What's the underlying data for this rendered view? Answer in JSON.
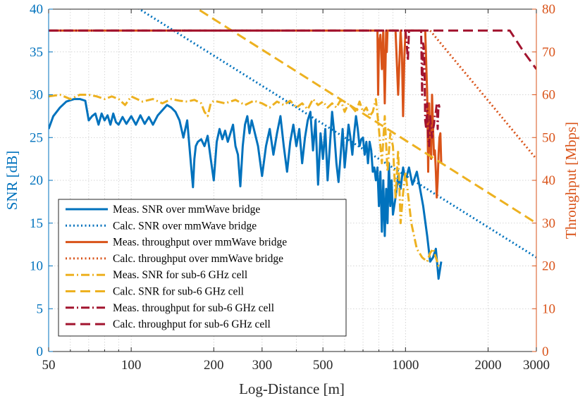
{
  "chart_data": {
    "type": "line",
    "xlabel": "Log-Distance [m]",
    "ylabel_left": "SNR [dB]",
    "ylabel_right": "Throughput [Mbps]",
    "xscale": "log",
    "xlim": [
      50,
      3000
    ],
    "ylim_left": [
      0,
      40
    ],
    "ylim_right": [
      0,
      80
    ],
    "xticks": [
      50,
      100,
      200,
      300,
      500,
      1000,
      2000,
      3000
    ],
    "xtick_labels": [
      "50",
      "100",
      "200",
      "300",
      "500",
      "1000",
      "2000",
      "3000"
    ],
    "yticks_left": [
      0,
      5,
      10,
      15,
      20,
      25,
      30,
      35,
      40
    ],
    "yticks_right": [
      0,
      10,
      20,
      30,
      40,
      50,
      60,
      70,
      80
    ],
    "minor_x_grid": [
      60,
      70,
      80,
      90,
      400,
      600,
      700,
      800,
      900
    ],
    "legend_position": "lower-left",
    "colors": {
      "snr": "#0072BD",
      "thr": "#D95319",
      "sub6_snr": "#EDB120",
      "sub6_thr": "#A2142F",
      "grid": "#c8c8c8"
    },
    "series": [
      {
        "name": "Meas. SNR over mmWave bridge",
        "axis": "left",
        "color": "#0072BD",
        "style": "solid",
        "x": [
          50,
          52,
          55,
          58,
          62,
          65,
          68,
          70,
          72,
          74,
          76,
          78,
          80,
          82,
          84,
          86,
          88,
          90,
          93,
          96,
          100,
          104,
          108,
          112,
          116,
          120,
          125,
          130,
          135,
          140,
          145,
          150,
          155,
          160,
          165,
          168,
          170,
          172,
          175,
          180,
          185,
          190,
          195,
          200,
          205,
          210,
          215,
          220,
          225,
          230,
          235,
          240,
          245,
          250,
          255,
          260,
          265,
          270,
          275,
          280,
          290,
          300,
          310,
          320,
          330,
          340,
          350,
          360,
          370,
          380,
          390,
          400,
          410,
          420,
          430,
          440,
          450,
          460,
          470,
          480,
          490,
          500,
          510,
          520,
          530,
          540,
          550,
          560,
          570,
          580,
          590,
          600,
          610,
          620,
          630,
          640,
          650,
          660,
          670,
          680,
          690,
          700,
          710,
          720,
          730,
          740,
          750,
          760,
          770,
          780,
          790,
          800,
          810,
          820,
          830,
          840,
          850,
          860,
          870,
          880,
          890,
          900,
          920,
          940,
          960,
          980,
          1000,
          1030,
          1060,
          1100,
          1130,
          1160,
          1200,
          1230,
          1260,
          1290,
          1320,
          1350
        ],
        "y": [
          26,
          27.5,
          28.5,
          29.2,
          29.5,
          29.5,
          29.3,
          27.0,
          27.5,
          27.8,
          26.5,
          27.8,
          27.0,
          27.6,
          26.5,
          27.8,
          26.8,
          26.5,
          27.4,
          26.6,
          27.5,
          26.5,
          27.6,
          26.6,
          27.4,
          26.5,
          27.6,
          28.2,
          28.8,
          28.5,
          28.0,
          27.0,
          25.0,
          27.0,
          22.0,
          19.2,
          22.5,
          24.0,
          24.5,
          24.8,
          24.0,
          25.2,
          22.5,
          20.0,
          24.5,
          26.0,
          24.8,
          25.8,
          24.5,
          25.5,
          26.5,
          24.0,
          23.0,
          19.3,
          24.0,
          26.5,
          27.5,
          25.5,
          27.0,
          26.0,
          24.0,
          20.5,
          24.0,
          26.0,
          23.0,
          25.5,
          27.5,
          24.0,
          21.0,
          24.5,
          26.5,
          24.0,
          26.0,
          22.0,
          25.0,
          27.0,
          28.0,
          23.5,
          27.0,
          19.5,
          25.5,
          22.5,
          26.0,
          20.0,
          24.0,
          28.0,
          25.5,
          22.0,
          19.8,
          23.0,
          26.0,
          21.5,
          24.0,
          26.5,
          25.0,
          23.0,
          25.5,
          27.5,
          26.0,
          24.0,
          24.8,
          25.0,
          23.0,
          24.5,
          22.0,
          24.5,
          23.5,
          21.0,
          21.5,
          20.0,
          21.5,
          17.0,
          21.0,
          14.0,
          20.0,
          13.5,
          19.0,
          15.0,
          22.0,
          17.0,
          20.0,
          16.0,
          18.0,
          20.5,
          19.0,
          21.5,
          20.0,
          21.5,
          19.5,
          21.0,
          19.0,
          17.0,
          13.5,
          10.5,
          11.0,
          12.0,
          8.5,
          10.5
        ]
      },
      {
        "name": "Calc. SNR over mmWave bridge",
        "axis": "left",
        "color": "#0072BD",
        "style": "dotted",
        "x": [
          100,
          3000
        ],
        "y": [
          40.6,
          11.0
        ]
      },
      {
        "name": "Meas. throughput over mmWave bridge",
        "axis": "right",
        "color": "#D95319",
        "style": "solid",
        "x": [
          50,
          790,
          795,
          800,
          810,
          820,
          830,
          840,
          850,
          855,
          860,
          870,
          880,
          890,
          900,
          920,
          940,
          960,
          970,
          980,
          990,
          1000,
          1020,
          1040,
          1060,
          1080,
          1100,
          1120,
          1140,
          1160,
          1180,
          1200,
          1210,
          1220,
          1230,
          1240,
          1250,
          1260,
          1270,
          1280,
          1290,
          1300,
          1310,
          1320,
          1330,
          1340,
          1350
        ],
        "y": [
          75,
          75,
          60,
          72,
          74,
          66,
          75,
          58,
          75,
          70,
          75,
          75,
          75,
          75,
          75,
          75,
          60,
          75,
          70,
          55,
          68,
          75,
          75,
          75,
          75,
          75,
          75,
          75,
          75,
          75,
          75,
          60,
          42,
          58,
          48,
          45,
          60,
          52,
          46,
          47,
          42,
          36,
          40,
          46,
          50,
          51,
          44
        ]
      },
      {
        "name": "Calc. throughput over mmWave bridge",
        "axis": "right",
        "color": "#D95319",
        "style": "dotted",
        "x": [
          1230,
          3000
        ],
        "y": [
          75,
          45
        ]
      },
      {
        "name": "Meas. SNR for sub-6 GHz cell",
        "axis": "left",
        "color": "#EDB120",
        "style": "dashdot",
        "x": [
          50,
          55,
          60,
          65,
          70,
          75,
          80,
          85,
          90,
          95,
          100,
          110,
          120,
          130,
          140,
          150,
          160,
          170,
          180,
          185,
          190,
          195,
          200,
          220,
          240,
          260,
          280,
          300,
          320,
          340,
          360,
          380,
          400,
          420,
          440,
          460,
          480,
          500,
          520,
          540,
          560,
          580,
          600,
          620,
          640,
          660,
          680,
          700,
          720,
          740,
          760,
          780,
          800,
          820,
          840,
          860,
          880,
          900,
          920,
          940,
          960,
          980,
          1000,
          1050,
          1100,
          1150,
          1200,
          1230,
          1260,
          1290,
          1320,
          1350
        ],
        "y": [
          29.8,
          30.0,
          29.5,
          30.0,
          30.0,
          29.8,
          29.5,
          29.8,
          29.5,
          28.8,
          29.8,
          29.2,
          29.5,
          29.0,
          29.5,
          29.3,
          29.2,
          29.4,
          29.0,
          28.0,
          27.5,
          29.0,
          29.3,
          29.0,
          29.4,
          28.8,
          29.3,
          29.0,
          28.5,
          29.2,
          28.8,
          29.3,
          28.5,
          29.0,
          28.3,
          29.5,
          28.8,
          29.2,
          28.5,
          29.0,
          28.5,
          29.4,
          28.0,
          29.0,
          28.5,
          28.0,
          29.2,
          28.0,
          28.5,
          27.5,
          28.0,
          29.5,
          26.0,
          22.0,
          27.5,
          21.0,
          25.5,
          24.0,
          18.0,
          23.5,
          15.0,
          18.5,
          21.0,
          15.0,
          12.0,
          11.0,
          10.5,
          11.5,
          12.0,
          11.0,
          10.0,
          10.0
        ]
      },
      {
        "name": "Calc. SNR for sub-6 GHz cell",
        "axis": "left",
        "color": "#EDB120",
        "style": "dashed",
        "x": [
          160,
          3000
        ],
        "y": [
          40.8,
          15.0
        ]
      },
      {
        "name": "Meas. throughput for sub-6 GHz cell",
        "axis": "right",
        "color": "#A2142F",
        "style": "dashdot",
        "x": [
          50,
          1000,
          1010,
          1020,
          1030,
          1040,
          1050,
          1060,
          1080,
          1100,
          1120,
          1140,
          1150,
          1160,
          1170,
          1180,
          1190,
          1200,
          1210,
          1220,
          1230,
          1240,
          1250,
          1260,
          1270,
          1280,
          1290,
          1300,
          1310,
          1320,
          1330
        ],
        "y": [
          75,
          75,
          72,
          68,
          75,
          75,
          75,
          75,
          75,
          75,
          75,
          75,
          60,
          72,
          70,
          54,
          52,
          58,
          50,
          48,
          55,
          52,
          50,
          52,
          53,
          55,
          56,
          58,
          52,
          58,
          57
        ]
      },
      {
        "name": "Calc. throughput for sub-6 GHz cell",
        "axis": "right",
        "color": "#A2142F",
        "style": "dashed",
        "x": [
          50,
          2400,
          2700,
          3000
        ],
        "y": [
          75,
          75,
          70,
          66
        ]
      }
    ]
  }
}
